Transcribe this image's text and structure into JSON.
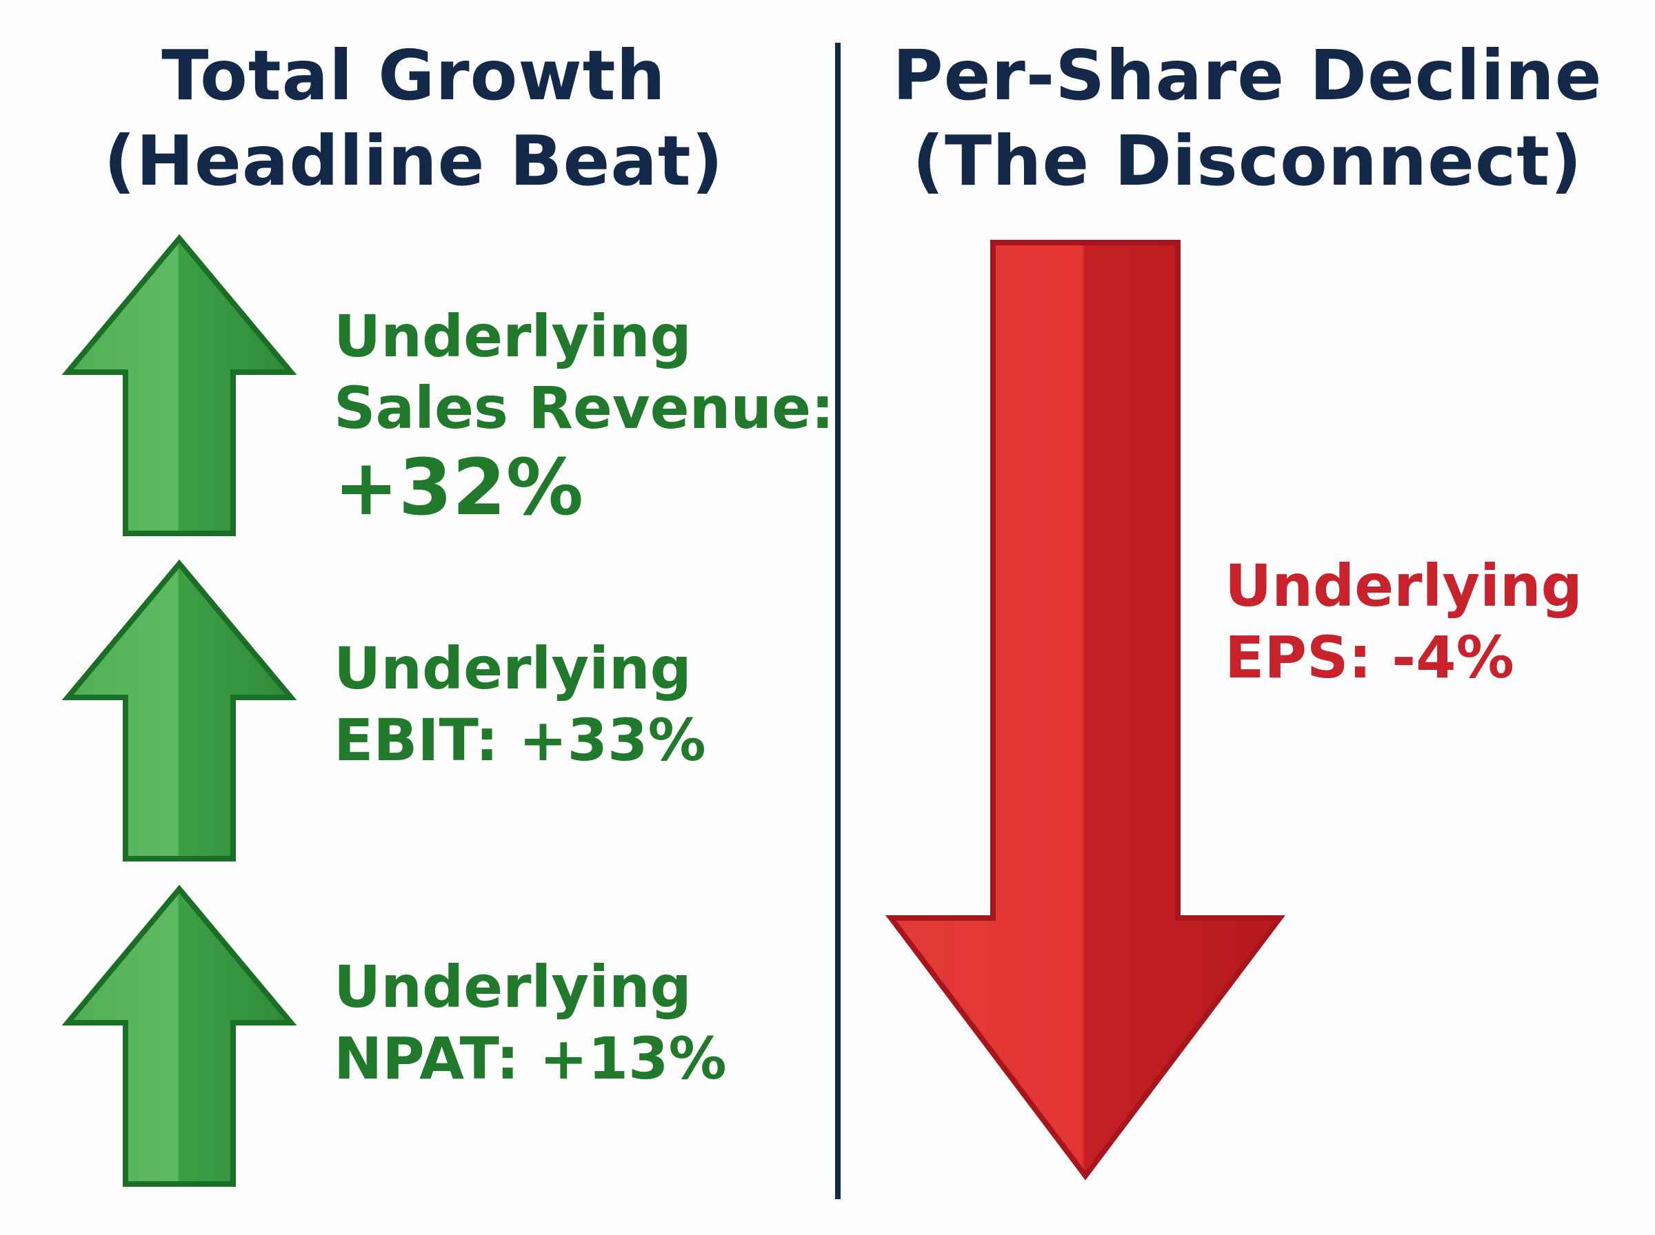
{
  "left": {
    "title_line1": "Total Growth",
    "title_line2": "(Headline Beat)",
    "metrics": [
      {
        "line1": "Underlying",
        "line2": "Sales Revenue:",
        "line3": "+32%",
        "change_pct": 32
      },
      {
        "line1": "Underlying",
        "line2": "EBIT: +33%",
        "change_pct": 33
      },
      {
        "line1": "Underlying",
        "line2": "NPAT: +13%",
        "change_pct": 13
      }
    ]
  },
  "right": {
    "title_line1": "Per-Share Decline",
    "title_line2": "(The Disconnect)",
    "metric": {
      "line1": "Underlying",
      "line2": "EPS: -4%",
      "change_pct": -4
    }
  },
  "colors": {
    "title": "#14284a",
    "divider": "#14284a",
    "growth_text": "#217a2c",
    "growth_arrow": "#3a9d45",
    "growth_arrow_border": "#1b6e25",
    "decline_text": "#c8232c",
    "decline_arrow": "#e03030",
    "decline_arrow_border": "#a8161d",
    "background": "#fdfdfd"
  },
  "icons": {
    "growth": "arrow-up-icon",
    "decline": "arrow-down-icon"
  }
}
